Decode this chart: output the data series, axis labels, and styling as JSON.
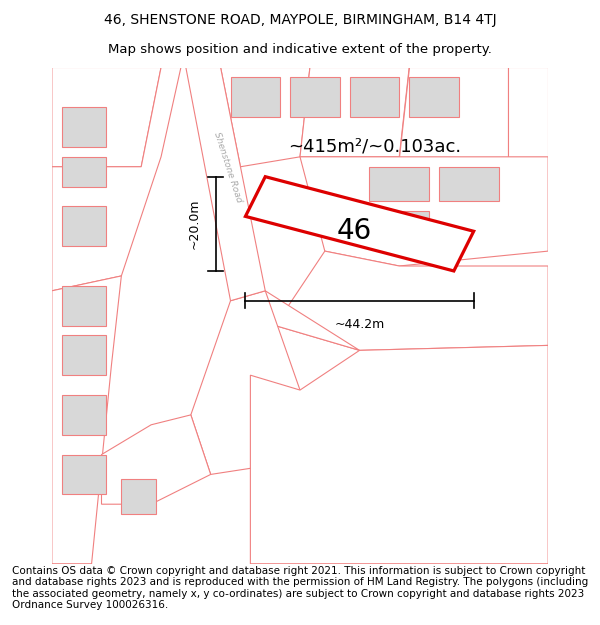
{
  "title_line1": "46, SHENSTONE ROAD, MAYPOLE, BIRMINGHAM, B14 4TJ",
  "title_line2": "Map shows position and indicative extent of the property.",
  "footer_text": "Contains OS data © Crown copyright and database right 2021. This information is subject to Crown copyright and database rights 2023 and is reproduced with the permission of HM Land Registry. The polygons (including the associated geometry, namely x, y co-ordinates) are subject to Crown copyright and database rights 2023 Ordnance Survey 100026316.",
  "background_color": "#ffffff",
  "map_bg": "#ffffff",
  "plot_color_fill": "#ffffff",
  "plot_color_stroke": "#dd0000",
  "parcel_fill": "#ffffff",
  "parcel_stroke": "#f08080",
  "building_fill": "#d8d8d8",
  "building_stroke": "#f08080",
  "road_fill": "#ffffff",
  "road_stroke": "#f08080",
  "area_text": "~415m²/~0.103ac.",
  "number_text": "46",
  "dim_width": "~44.2m",
  "dim_height": "~20.0m",
  "road_label": "Shenstone Road",
  "title_fontsize": 10,
  "footer_fontsize": 7.5
}
